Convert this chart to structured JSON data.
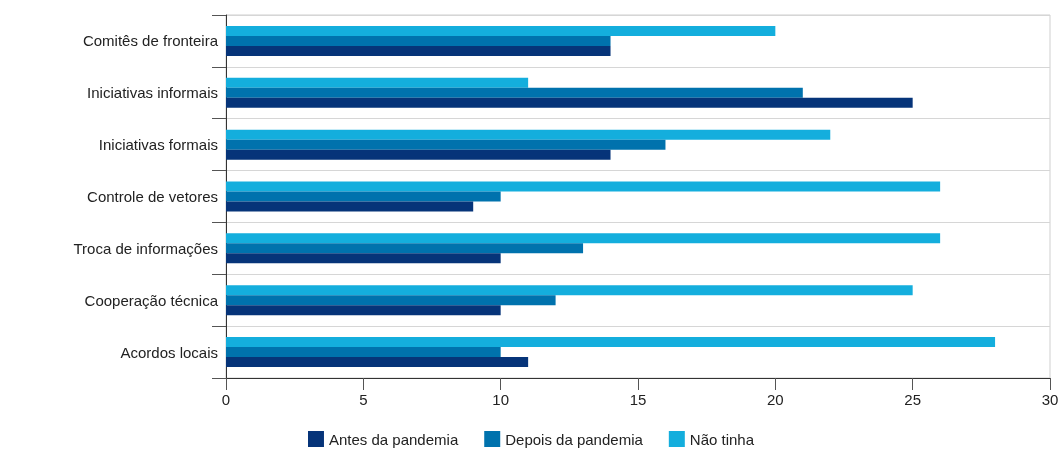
{
  "chart_data": {
    "type": "bar",
    "orientation": "horizontal",
    "categories": [
      "Comitês de fronteira",
      "Iniciativas informais",
      "Iniciativas formais",
      "Controle de vetores",
      "Troca de informações",
      "Cooperação técnica",
      "Acordos locais"
    ],
    "series": [
      {
        "name": "Antes da pandemia",
        "color": "#063479",
        "values": [
          14,
          25,
          14,
          9,
          10,
          10,
          11
        ]
      },
      {
        "name": "Depois da pandemia",
        "color": "#0072ad",
        "values": [
          14,
          21,
          16,
          10,
          13,
          12,
          10
        ]
      },
      {
        "name": "Não tinha",
        "color": "#14aedd",
        "values": [
          20,
          11,
          22,
          26,
          26,
          25,
          28
        ]
      }
    ],
    "xlim": [
      0,
      30
    ],
    "xticks": [
      0,
      5,
      10,
      15,
      20,
      25,
      30
    ],
    "grid": "y",
    "legend": "bottom"
  }
}
